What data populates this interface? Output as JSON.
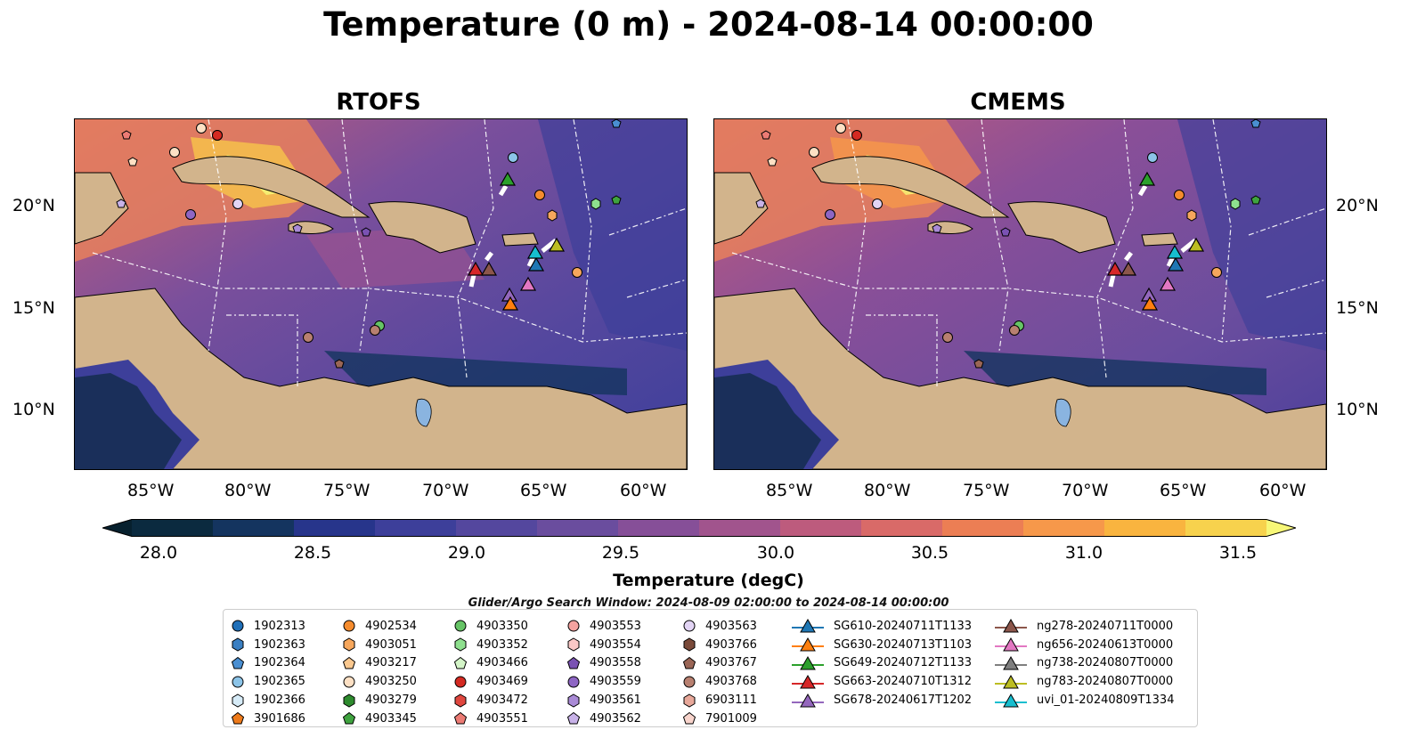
{
  "title": "Temperature (0 m) - 2024-08-14 00:00:00",
  "panels": [
    {
      "title": "RTOFS"
    },
    {
      "title": "CMEMS"
    }
  ],
  "lat_ticks": [
    "20°N",
    "15°N",
    "10°N"
  ],
  "lon_ticks": [
    "85°W",
    "80°W",
    "75°W",
    "70°W",
    "65°W",
    "60°W"
  ],
  "colorbar": {
    "title": "Temperature (degC)",
    "ticks": [
      "28.0",
      "28.5",
      "29.0",
      "29.5",
      "30.0",
      "30.5",
      "31.0",
      "31.5"
    ],
    "range": [
      28.0,
      31.5
    ],
    "extend": "both",
    "colors": [
      "#0b2a3f",
      "#14345f",
      "#27358b",
      "#3d3f9a",
      "#54479e",
      "#6a4d9e",
      "#864f98",
      "#a1548d",
      "#bd5b7d",
      "#d96a68",
      "#ec7e54",
      "#f6984a",
      "#f9b43f",
      "#f7d24d"
    ],
    "over_color": "#f7f777",
    "under_color": "#07202e"
  },
  "search_window": "Glider/Argo Search Window: 2024-08-09 02:00:00 to 2024-08-14 00:00:00",
  "legend": [
    {
      "label": "1902313",
      "marker": "circle",
      "color": "#1f6fb8"
    },
    {
      "label": "1902363",
      "marker": "hexagon",
      "color": "#3a7fc2"
    },
    {
      "label": "1902364",
      "marker": "pentagon",
      "color": "#4a8fd2"
    },
    {
      "label": "1902365",
      "marker": "circle",
      "color": "#8cc4e8"
    },
    {
      "label": "1902366",
      "marker": "hexagon",
      "color": "#d6ebf7"
    },
    {
      "label": "3901686",
      "marker": "pentagon",
      "color": "#ee7a1a"
    },
    {
      "label": "4902534",
      "marker": "circle",
      "color": "#f58c2e"
    },
    {
      "label": "4903051",
      "marker": "hexagon",
      "color": "#f7a75c"
    },
    {
      "label": "4903217",
      "marker": "pentagon",
      "color": "#fac88f"
    },
    {
      "label": "4903250",
      "marker": "circle",
      "color": "#fde0c4"
    },
    {
      "label": "4903279",
      "marker": "hexagon",
      "color": "#2e8b2e"
    },
    {
      "label": "4903345",
      "marker": "pentagon",
      "color": "#3fa33f"
    },
    {
      "label": "4903350",
      "marker": "circle",
      "color": "#66c466"
    },
    {
      "label": "4903352",
      "marker": "hexagon",
      "color": "#8ee08e"
    },
    {
      "label": "4903466",
      "marker": "pentagon",
      "color": "#d4f5c8"
    },
    {
      "label": "4903469",
      "marker": "circle",
      "color": "#d42a22"
    },
    {
      "label": "4903472",
      "marker": "hexagon",
      "color": "#e0473f"
    },
    {
      "label": "4903551",
      "marker": "pentagon",
      "color": "#ec7b74"
    },
    {
      "label": "4903553",
      "marker": "circle",
      "color": "#f4a3a0"
    },
    {
      "label": "4903554",
      "marker": "hexagon",
      "color": "#fac8c6"
    },
    {
      "label": "4903558",
      "marker": "pentagon",
      "color": "#7a52b3"
    },
    {
      "label": "4903559",
      "marker": "circle",
      "color": "#8e66c4"
    },
    {
      "label": "4903561",
      "marker": "hexagon",
      "color": "#a98ad6"
    },
    {
      "label": "4903562",
      "marker": "pentagon",
      "color": "#c8b2e8"
    },
    {
      "label": "4903563",
      "marker": "circle",
      "color": "#e2d4f4"
    },
    {
      "label": "4903766",
      "marker": "hexagon",
      "color": "#7a4a3a"
    },
    {
      "label": "4903767",
      "marker": "pentagon",
      "color": "#9a6656"
    },
    {
      "label": "4903768",
      "marker": "circle",
      "color": "#b88070"
    },
    {
      "label": "6903111",
      "marker": "hexagon",
      "color": "#e8a89a"
    },
    {
      "label": "7901009",
      "marker": "pentagon",
      "color": "#f8d4cc"
    },
    {
      "label": "SG610-20240711T1133",
      "marker": "triangle",
      "color": "#1f77b4"
    },
    {
      "label": "SG630-20240713T1103",
      "marker": "triangle",
      "color": "#ff7f0e"
    },
    {
      "label": "SG649-20240712T1133",
      "marker": "triangle",
      "color": "#2ca02c"
    },
    {
      "label": "SG663-20240710T1312",
      "marker": "triangle",
      "color": "#d62728"
    },
    {
      "label": "SG678-20240617T1202",
      "marker": "triangle",
      "color": "#9467bd"
    },
    {
      "label": "ng278-20240711T0000",
      "marker": "triangle",
      "color": "#8c564b"
    },
    {
      "label": "ng656-20240613T0000",
      "marker": "triangle",
      "color": "#e377c2"
    },
    {
      "label": "ng738-20240807T0000",
      "marker": "triangle",
      "color": "#7f7f7f"
    },
    {
      "label": "ng783-20240807T0000",
      "marker": "triangle",
      "color": "#bcbd22"
    },
    {
      "label": "uvi_01-20240809T1334",
      "marker": "triangle",
      "color": "#17becf"
    }
  ]
}
